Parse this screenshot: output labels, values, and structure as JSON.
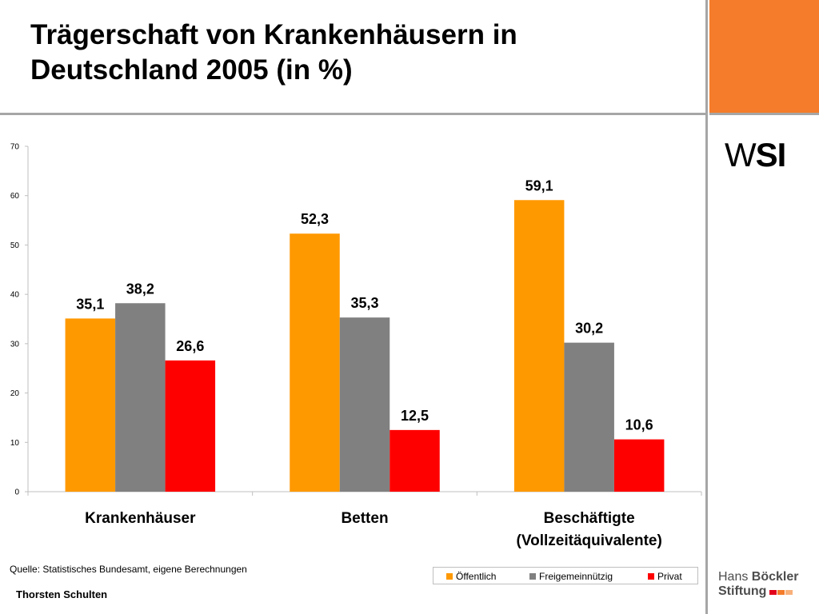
{
  "slide": {
    "title_line1": "Trägerschaft von Krankenhäusern in",
    "title_line2": "Deutschland 2005 (in %)",
    "logo_wsi_w": "W",
    "logo_wsi_si": "SI",
    "source": "Quelle: Statistisches Bundesamt, eigene Berechnungen",
    "author": "Thorsten Schulten",
    "hbs_logo_line1_a": "Hans ",
    "hbs_logo_line1_b": "Böckler",
    "hbs_logo_line2": "Stiftung"
  },
  "colors": {
    "accent_orange": "#f47c2a",
    "oeffentlich": "#ff9900",
    "freigemeinnuetzig": "#808080",
    "privat": "#ff0000"
  },
  "chart_data": {
    "type": "bar",
    "categories": [
      "Krankenhäuser",
      "Betten",
      "Beschäftigte\n(Vollzeitäquivalente)"
    ],
    "series": [
      {
        "name": "Öffentlich",
        "values": [
          35.1,
          52.3,
          59.1
        ],
        "labels": [
          "35,1",
          "52,3",
          "59,1"
        ]
      },
      {
        "name": "Freigemeinnützig",
        "values": [
          38.2,
          35.3,
          30.2
        ],
        "labels": [
          "38,2",
          "35,3",
          "30,2"
        ]
      },
      {
        "name": "Privat",
        "values": [
          26.6,
          12.5,
          10.6
        ],
        "labels": [
          "26,6",
          "12,5",
          "10,6"
        ]
      }
    ],
    "yticks": [
      "0",
      "10",
      "20",
      "30",
      "40",
      "50",
      "60",
      "70"
    ],
    "ylim": [
      0,
      70
    ],
    "grid": false,
    "legend_position": "bottom-right"
  }
}
